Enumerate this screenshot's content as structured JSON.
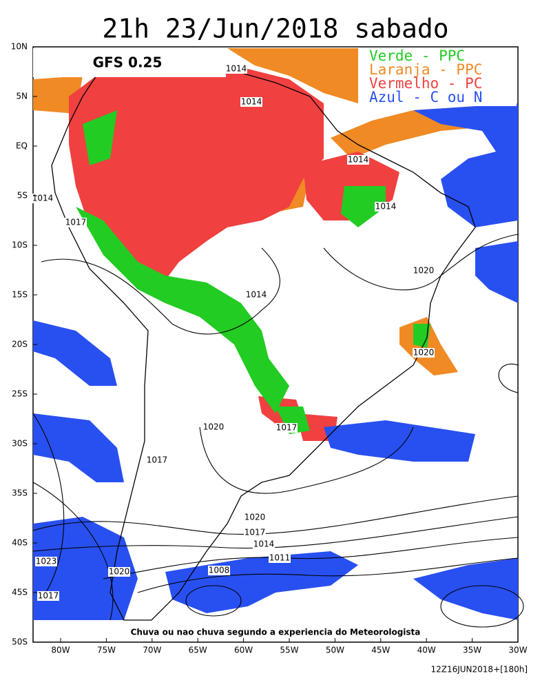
{
  "title": "21h 23/Jun/2018 sabado",
  "model_label": "GFS 0.25",
  "legend": [
    {
      "label": "Verde - PPC",
      "color": "#22cc22"
    },
    {
      "label": "Laranja - PPC",
      "color": "#f08a24"
    },
    {
      "label": "Vermelho - PC",
      "color": "#f04040"
    },
    {
      "label": "Azul - C ou N",
      "color": "#2850f0"
    }
  ],
  "lat_ticks": [
    "10N",
    "5N",
    "EQ",
    "5S",
    "10S",
    "15S",
    "20S",
    "25S",
    "30S",
    "35S",
    "40S",
    "45S",
    "50S"
  ],
  "lon_ticks": [
    "80W",
    "75W",
    "70W",
    "65W",
    "60W",
    "55W",
    "50W",
    "45W",
    "40W",
    "35W",
    "30W"
  ],
  "isobar_labels": [
    "1014",
    "1014",
    "1014",
    "1014",
    "1014",
    "1017",
    "1020",
    "1014",
    "1020",
    "1020",
    "1017",
    "1017",
    "1020",
    "1017",
    "1014",
    "1011",
    "1008",
    "1023",
    "1020",
    "1017"
  ],
  "footnote": "Chuva ou nao chuva segundo a experiencia do Meteorologista",
  "run_stamp": "12Z16JUN2018+[180h]"
}
